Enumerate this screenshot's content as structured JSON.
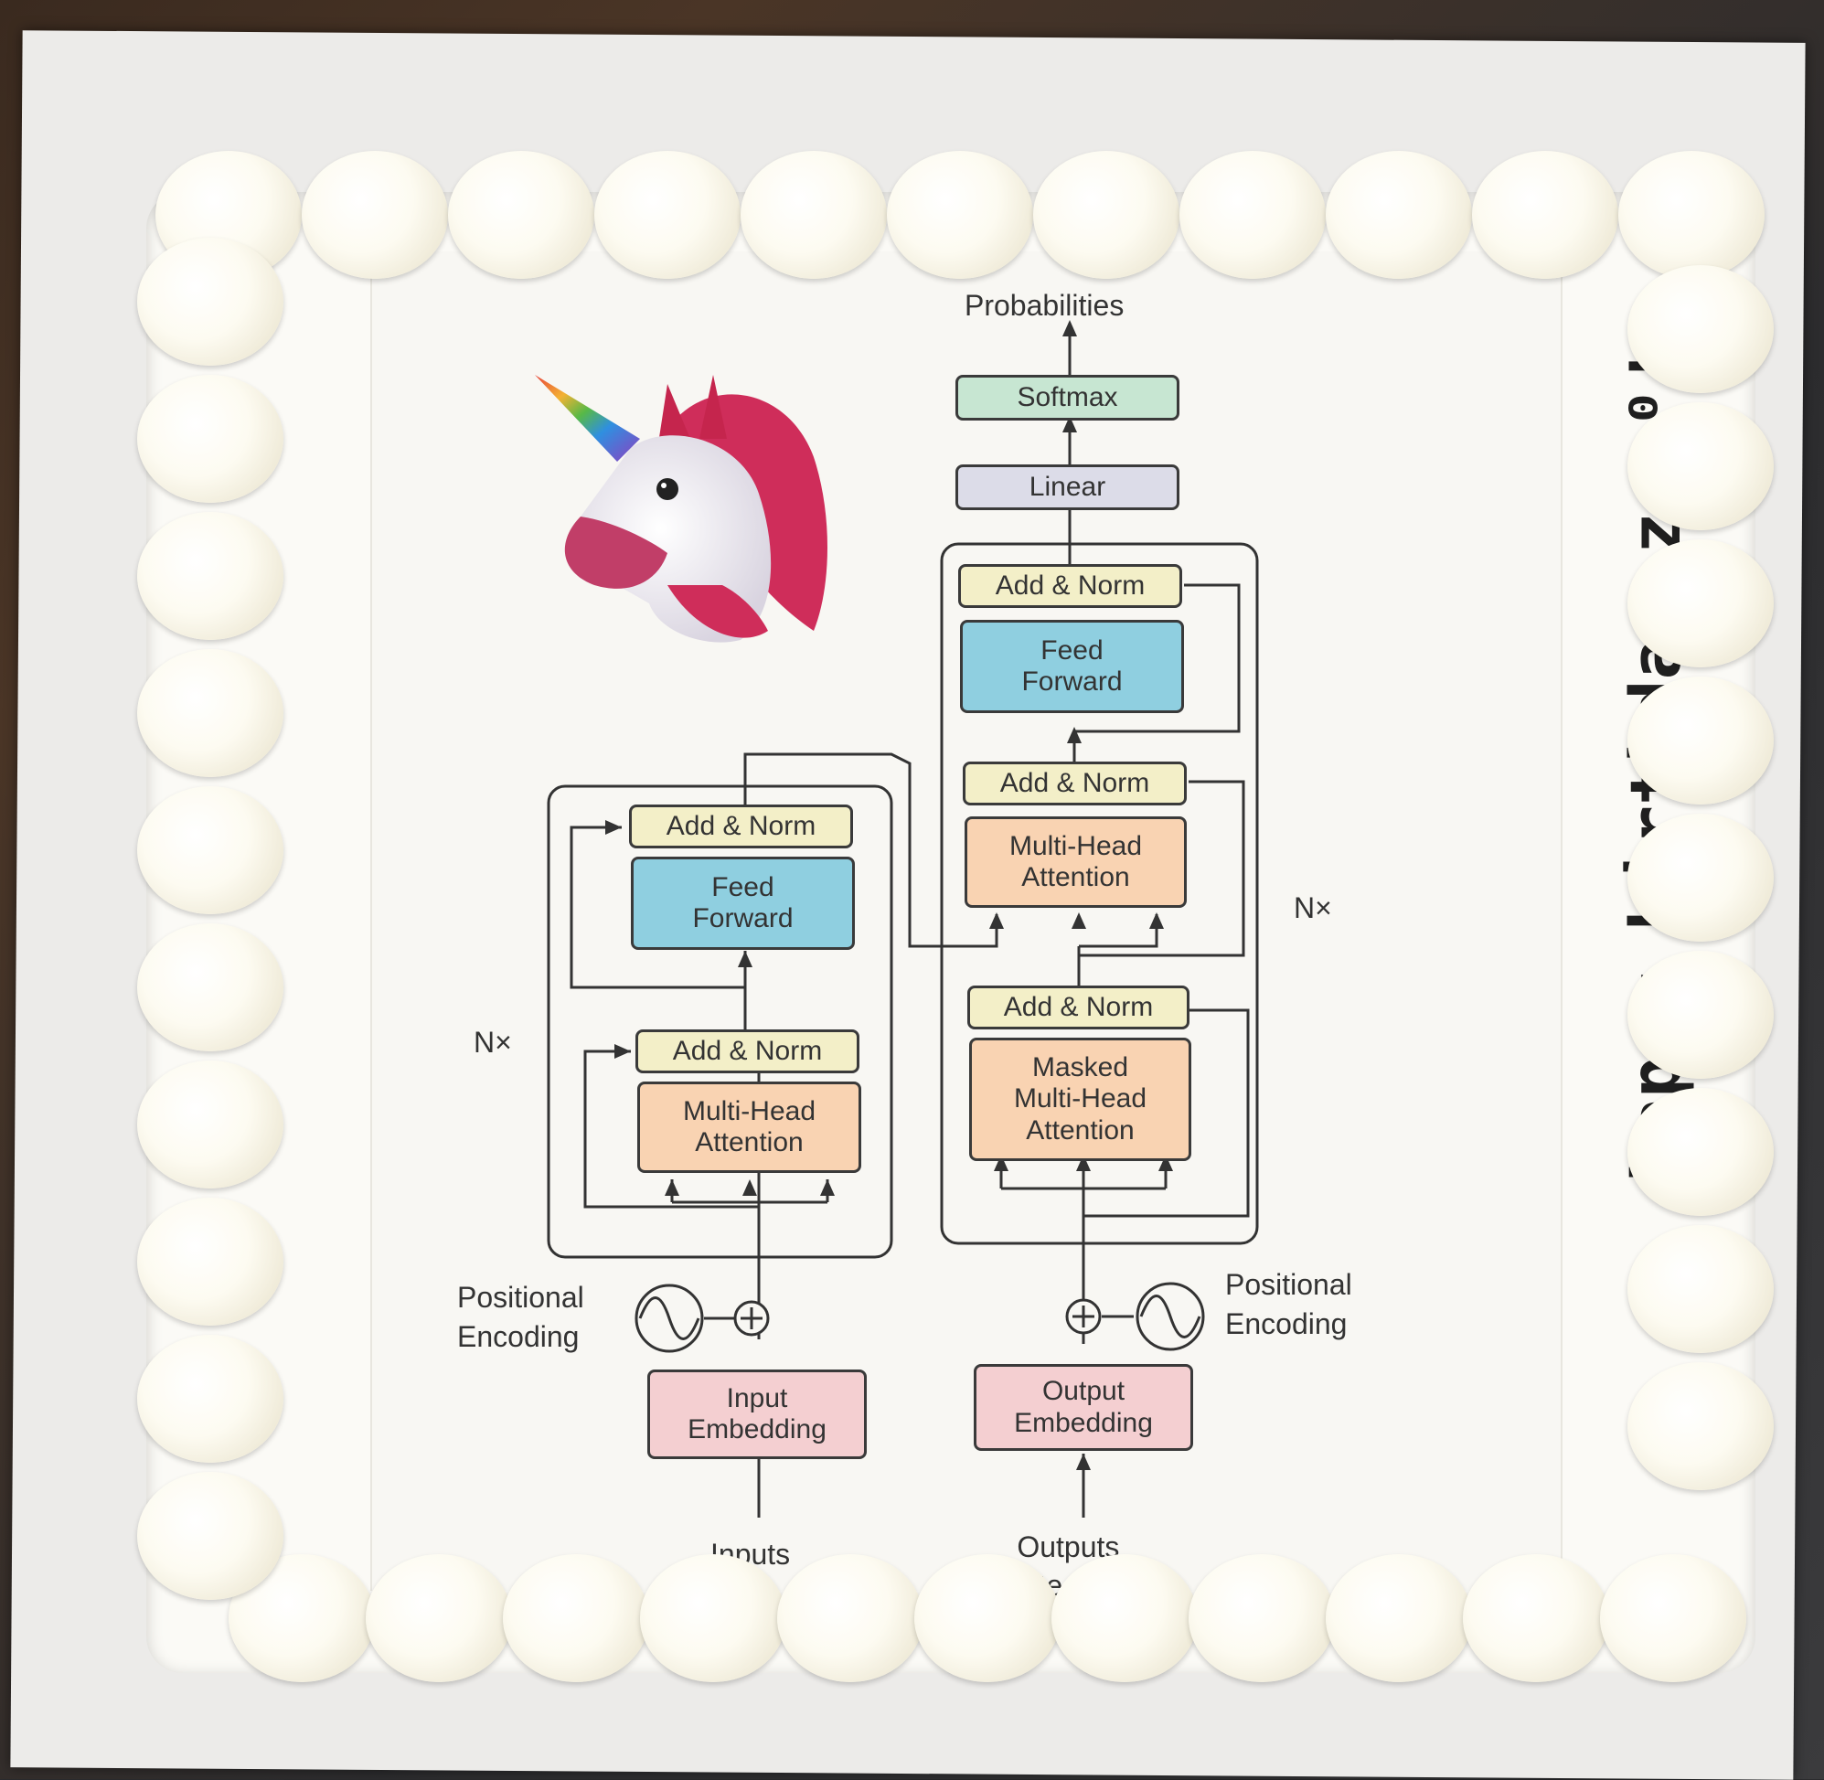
{
  "greeting": "Happy birthday zcy⁰!",
  "diagram": {
    "output_label": "Probabilities",
    "softmax": "Softmax",
    "linear": "Linear",
    "add_norm": "Add & Norm",
    "feed_forward": "Feed\nForward",
    "multi_head": "Multi-Head\nAttention",
    "masked_multi_head": "Masked\nMulti-Head\nAttention",
    "input_embedding": "Input\nEmbedding",
    "output_embedding": "Output\nEmbedding",
    "positional_encoding": "Positional\nEncoding",
    "nx": "N×",
    "inputs": "Inputs",
    "outputs": "Outputs\n(shifted right)"
  },
  "colors": {
    "add_norm": "#f3efc8",
    "feed_forward": "#8fcfe0",
    "attention": "#f9d3b2",
    "embedding": "#f4cfd1",
    "linear": "#dcdce8",
    "softmax": "#c7e6d2",
    "frosting": "#fdfbf1"
  },
  "icons": [
    "unicorn-icon",
    "sine-wave-icon",
    "plus-circle-icon"
  ]
}
